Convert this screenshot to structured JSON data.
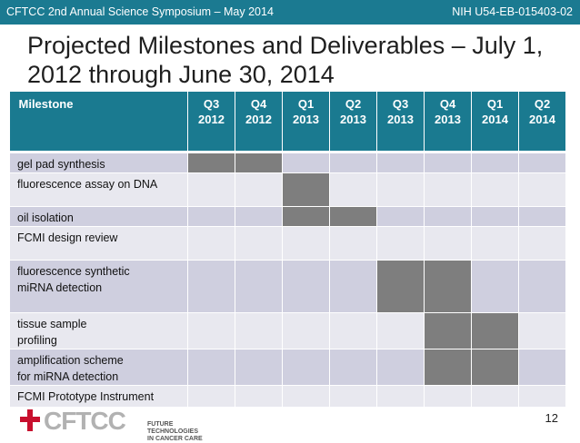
{
  "header": {
    "left": "CFTCC 2nd Annual Science Symposium – May 2014",
    "right": "NIH U54-EB-015403-02"
  },
  "title": "Projected Milestones and Deliverables – July 1, 2012 through June 30, 2014",
  "table": {
    "milestone_header": "Milestone",
    "quarters": [
      {
        "q": "Q3",
        "y": "2012"
      },
      {
        "q": "Q4",
        "y": "2012"
      },
      {
        "q": "Q1",
        "y": "2013"
      },
      {
        "q": "Q2",
        "y": "2013"
      },
      {
        "q": "Q3",
        "y": "2013"
      },
      {
        "q": "Q4",
        "y": "2013"
      },
      {
        "q": "Q1",
        "y": "2014"
      },
      {
        "q": "Q2",
        "y": "2014"
      }
    ],
    "rows": [
      {
        "lines": [
          "gel pad synthesis"
        ],
        "filled": [
          true,
          true,
          false,
          false,
          false,
          false,
          false,
          false
        ]
      },
      {
        "lines": [
          "fluorescence assay on DNA"
        ],
        "filled": [
          false,
          false,
          true,
          false,
          false,
          false,
          false,
          false
        ]
      },
      {
        "lines": [
          "oil isolation"
        ],
        "filled": [
          false,
          false,
          true,
          true,
          false,
          false,
          false,
          false
        ]
      },
      {
        "lines": [
          "FCMI design review"
        ],
        "filled": [
          false,
          false,
          false,
          false,
          false,
          false,
          false,
          false
        ]
      },
      {
        "lines": [
          "fluorescence synthetic",
          "miRNA detection"
        ],
        "filled": [
          false,
          false,
          false,
          false,
          true,
          true,
          false,
          false
        ]
      },
      {
        "lines": [
          "tissue sample",
          "profiling"
        ],
        "filled": [
          false,
          false,
          false,
          false,
          false,
          true,
          true,
          false
        ]
      },
      {
        "lines": [
          "amplification scheme",
          "for miRNA detection"
        ],
        "filled": [
          false,
          false,
          false,
          false,
          false,
          true,
          true,
          false
        ]
      },
      {
        "lines": [
          "FCMI Prototype Instrument"
        ],
        "filled": [
          false,
          false,
          false,
          false,
          false,
          false,
          false,
          false
        ]
      }
    ]
  },
  "footer": {
    "logo_text": "CFTCC",
    "logo_tagline": [
      "FUTURE TECHNOLOGIES",
      "IN CANCER CARE"
    ],
    "page_number": "12"
  },
  "colors": {
    "header_bar": "#1b7a91",
    "table_header": "#1a7a90",
    "row_odd": "#cfcfdf",
    "row_even": "#e8e8ef",
    "filled_cell": "#7e7e7e",
    "logo_red": "#c8102e"
  }
}
